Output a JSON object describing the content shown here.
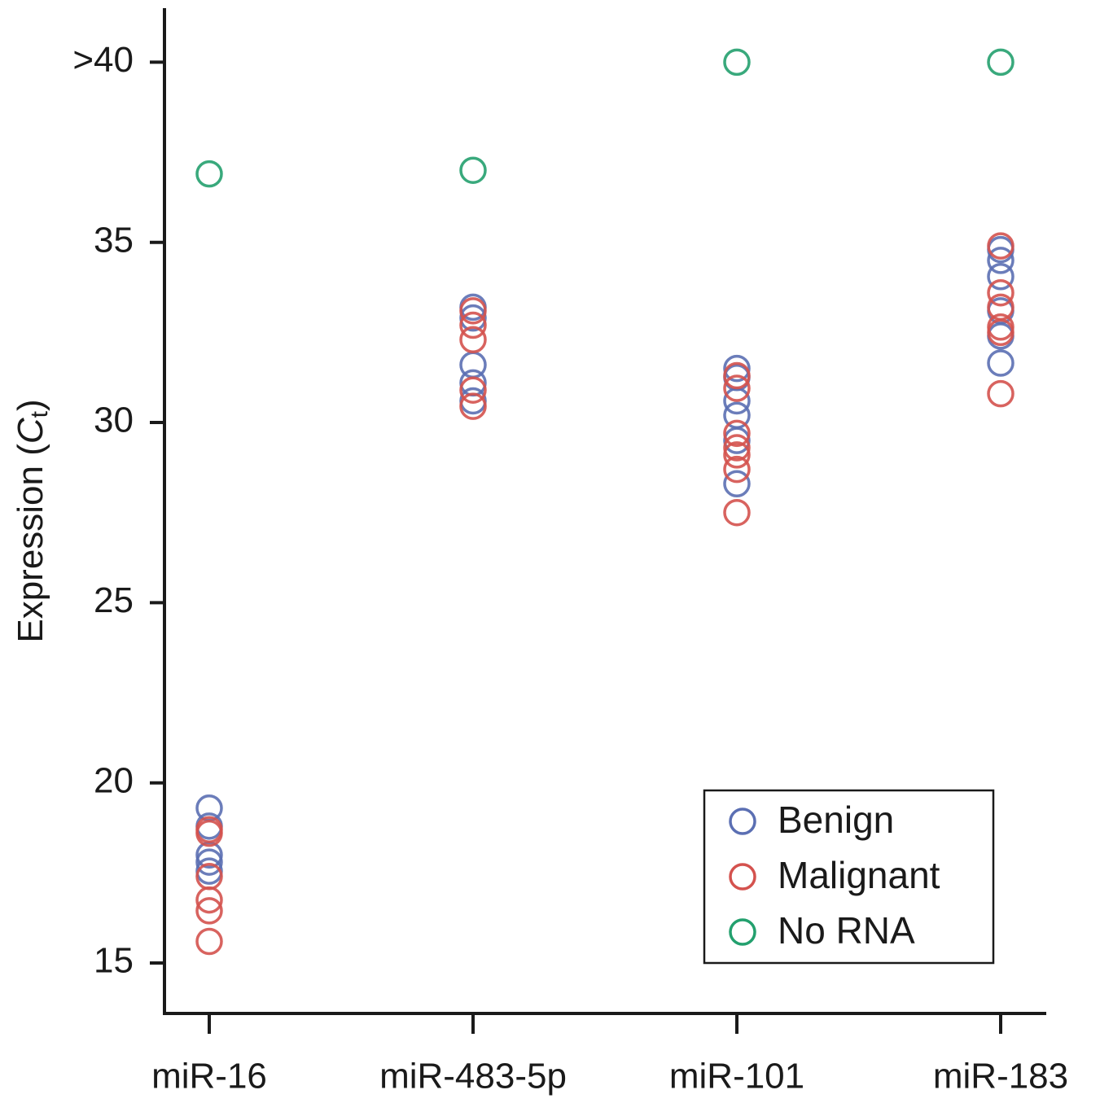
{
  "chart_data": {
    "type": "strip",
    "y_label": [
      "Expression (",
      "C",
      "t",
      ")"
    ],
    "categories": [
      "miR-16",
      "miR-483-5p",
      "miR-101",
      "miR-183"
    ],
    "ylim": [
      13.6,
      41.5
    ],
    "yticks": [
      15,
      20,
      25,
      30,
      35,
      {
        "value": 40,
        "label": ">40"
      }
    ],
    "legend": "lower right",
    "series": [
      {
        "name": "Benign",
        "color": "#5b6fb3",
        "values": [
          [
            19.3,
            18.8,
            18.0,
            17.8,
            17.55
          ],
          [
            33.2,
            32.9,
            31.6,
            31.1,
            30.6
          ],
          [
            31.5,
            31.25,
            30.6,
            30.2,
            29.5,
            28.3
          ],
          [
            34.8,
            34.5,
            34.05,
            33.1,
            32.4,
            31.65
          ]
        ]
      },
      {
        "name": "Malignant",
        "color": "#d4524e",
        "values": [
          [
            18.7,
            18.6,
            17.4,
            16.75,
            16.45,
            15.6
          ],
          [
            33.1,
            32.7,
            32.3,
            30.9,
            30.45
          ],
          [
            31.3,
            30.95,
            29.7,
            29.3,
            29.1,
            28.7,
            27.5
          ],
          [
            34.9,
            33.6,
            33.2,
            32.65,
            32.5,
            30.8
          ]
        ]
      },
      {
        "name": "No RNA",
        "color": "#23a06e",
        "values": [
          [
            36.9
          ],
          [
            37.0
          ],
          [
            40
          ],
          [
            40
          ]
        ]
      }
    ]
  }
}
